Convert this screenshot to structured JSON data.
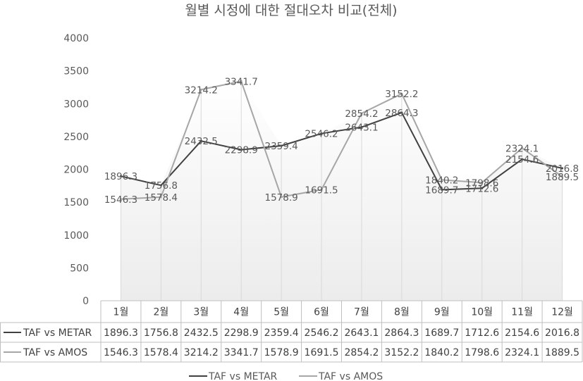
{
  "chart_data": {
    "type": "line",
    "title": "월별 시정에 대한 절대오차 비교(전체)",
    "categories": [
      "1월",
      "2월",
      "3월",
      "4월",
      "5월",
      "6월",
      "7월",
      "8월",
      "9월",
      "10월",
      "11월",
      "12월"
    ],
    "ylim": [
      0,
      4000
    ],
    "yticks": [
      0,
      500,
      1000,
      1500,
      2000,
      2500,
      3000,
      3500,
      4000
    ],
    "grid": false,
    "legend_position": "bottom",
    "data_table": true,
    "series": [
      {
        "name": "TAF vs METAR",
        "color": "#404040",
        "values": [
          1896.3,
          1756.8,
          2432.5,
          2298.9,
          2359.4,
          2546.2,
          2643.1,
          2864.3,
          1689.7,
          1712.6,
          2154.6,
          2016.8
        ]
      },
      {
        "name": "TAF vs AMOS",
        "color": "#a6a6a6",
        "values": [
          1546.3,
          1578.4,
          3214.2,
          3341.7,
          1578.9,
          1691.5,
          2854.2,
          3152.2,
          1840.2,
          1798.6,
          2324.1,
          1889.5
        ]
      }
    ]
  }
}
